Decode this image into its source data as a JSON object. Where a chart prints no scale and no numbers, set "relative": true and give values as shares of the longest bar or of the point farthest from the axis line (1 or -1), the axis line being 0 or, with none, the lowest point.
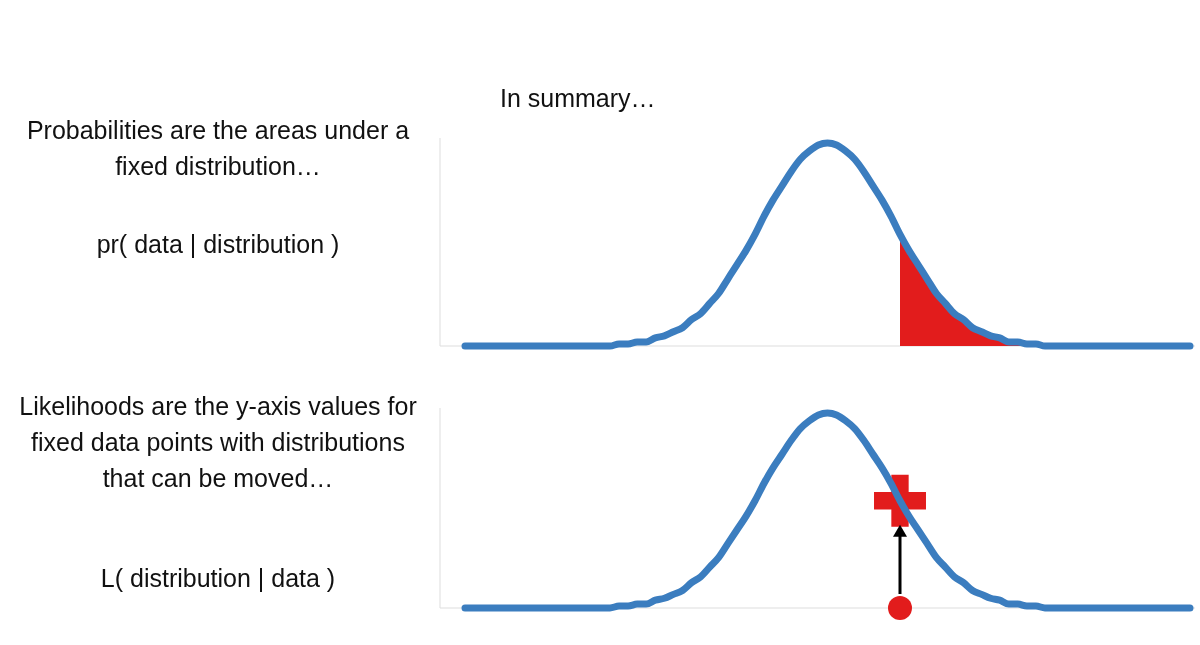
{
  "chart_data": [
    {
      "type": "line",
      "relative": true,
      "title": "In summary…",
      "annotations": [
        "Probabilities are the areas under a fixed distribution…",
        "pr( data | distribution )"
      ],
      "categories": [
        null,
        null,
        null,
        null,
        null,
        null,
        null,
        null,
        null,
        null,
        null,
        null,
        null,
        null,
        null,
        null,
        null,
        null,
        null,
        null,
        null,
        null,
        null,
        null,
        null,
        null,
        null,
        null,
        null,
        null,
        null,
        null,
        null,
        null,
        null,
        null,
        null,
        null,
        null,
        null,
        null,
        null,
        null,
        null,
        null,
        null,
        null,
        null,
        null,
        null,
        null,
        null,
        null,
        null,
        null,
        null,
        null,
        null,
        null,
        null,
        null,
        null,
        null,
        null,
        null,
        null,
        null,
        null,
        null,
        null,
        null,
        null,
        null,
        null,
        null,
        null,
        null,
        null,
        null,
        null,
        null
      ],
      "series": [
        {
          "color": "#3b7dbf",
          "values": [
            0,
            0,
            0,
            0,
            0,
            0,
            0,
            0,
            0,
            0,
            0,
            0,
            0,
            0,
            0,
            0,
            0,
            0.01,
            0.01,
            0.02,
            0.02,
            0.04,
            0.05,
            0.07,
            0.09,
            0.13,
            0.16,
            0.21,
            0.26,
            0.33,
            0.4,
            0.47,
            0.55,
            0.64,
            0.72,
            0.79,
            0.86,
            0.92,
            0.96,
            0.99,
            1,
            0.99,
            0.96,
            0.92,
            0.86,
            0.79,
            0.72,
            0.64,
            0.55,
            0.47,
            0.4,
            0.33,
            0.26,
            0.21,
            0.16,
            0.13,
            0.09,
            0.07,
            0.05,
            0.04,
            0.02,
            0.02,
            0.01,
            0.01,
            0,
            0,
            0,
            0,
            0,
            0,
            0,
            0,
            0,
            0,
            0,
            0,
            0,
            0,
            0,
            0,
            0
          ]
        },
        {
          "type": "area",
          "color": "#e21c1c",
          "values": [
            null,
            null,
            null,
            null,
            null,
            null,
            null,
            null,
            null,
            null,
            null,
            null,
            null,
            null,
            null,
            null,
            null,
            null,
            null,
            null,
            null,
            null,
            null,
            null,
            null,
            null,
            null,
            null,
            null,
            null,
            null,
            null,
            null,
            null,
            null,
            null,
            null,
            null,
            null,
            null,
            null,
            null,
            null,
            null,
            null,
            null,
            null,
            null,
            0.55,
            0.47,
            0.4,
            0.33,
            0.26,
            0.21,
            0.16,
            0.13,
            0.09,
            0.07,
            0.05,
            0.04,
            0.02,
            0.02,
            0.01,
            0.01,
            null,
            null,
            null,
            null,
            null,
            null,
            null,
            null,
            null,
            null,
            null,
            null,
            null,
            null,
            null,
            null,
            null
          ]
        }
      ]
    },
    {
      "type": "line",
      "relative": true,
      "annotations": [
        "Likelihoods are the y-axis values for fixed data points with distributions that can be moved…",
        "L( distribution | data )"
      ],
      "categories": [
        null,
        null,
        null,
        null,
        null,
        null,
        null,
        null,
        null,
        null,
        null,
        null,
        null,
        null,
        null,
        null,
        null,
        null,
        null,
        null,
        null,
        null,
        null,
        null,
        null,
        null,
        null,
        null,
        null,
        null,
        null,
        null,
        null,
        null,
        null,
        null,
        null,
        null,
        null,
        null,
        null,
        null,
        null,
        null,
        null,
        null,
        null,
        null,
        null,
        null,
        null,
        null,
        null,
        null,
        null,
        null,
        null,
        null,
        null,
        null,
        null,
        null,
        null,
        null,
        null,
        null,
        null,
        null,
        null,
        null,
        null,
        null,
        null,
        null,
        null,
        null,
        null,
        null,
        null,
        null,
        null
      ],
      "series": [
        {
          "color": "#3b7dbf",
          "values": [
            0,
            0,
            0,
            0,
            0,
            0,
            0,
            0,
            0,
            0,
            0,
            0,
            0,
            0,
            0,
            0,
            0,
            0.01,
            0.01,
            0.02,
            0.02,
            0.04,
            0.05,
            0.07,
            0.09,
            0.13,
            0.16,
            0.21,
            0.26,
            0.33,
            0.4,
            0.47,
            0.55,
            0.64,
            0.72,
            0.79,
            0.86,
            0.92,
            0.96,
            0.99,
            1,
            0.99,
            0.96,
            0.92,
            0.86,
            0.79,
            0.72,
            0.64,
            0.55,
            0.47,
            0.4,
            0.33,
            0.26,
            0.21,
            0.16,
            0.13,
            0.09,
            0.07,
            0.05,
            0.04,
            0.02,
            0.02,
            0.01,
            0.01,
            0,
            0,
            0,
            0,
            0,
            0,
            0,
            0,
            0,
            0,
            0,
            0,
            0,
            0,
            0,
            0,
            0
          ]
        },
        {
          "type": "scatter",
          "marker": "cross",
          "color": "#e21c1c",
          "values": [
            null,
            null,
            null,
            null,
            null,
            null,
            null,
            null,
            null,
            null,
            null,
            null,
            null,
            null,
            null,
            null,
            null,
            null,
            null,
            null,
            null,
            null,
            null,
            null,
            null,
            null,
            null,
            null,
            null,
            null,
            null,
            null,
            null,
            null,
            null,
            null,
            null,
            null,
            null,
            null,
            null,
            null,
            null,
            null,
            null,
            null,
            null,
            null,
            0.55,
            null,
            null,
            null,
            null,
            null,
            null,
            null,
            null,
            null,
            null,
            null,
            null,
            null,
            null,
            null,
            null,
            null,
            null,
            null,
            null,
            null,
            null,
            null,
            null,
            null,
            null,
            null,
            null,
            null,
            null,
            null,
            null
          ]
        },
        {
          "type": "scatter",
          "marker": "circle",
          "color": "#e21c1c",
          "values": [
            null,
            null,
            null,
            null,
            null,
            null,
            null,
            null,
            null,
            null,
            null,
            null,
            null,
            null,
            null,
            null,
            null,
            null,
            null,
            null,
            null,
            null,
            null,
            null,
            null,
            null,
            null,
            null,
            null,
            null,
            null,
            null,
            null,
            null,
            null,
            null,
            null,
            null,
            null,
            null,
            null,
            null,
            null,
            null,
            null,
            null,
            null,
            null,
            0,
            null,
            null,
            null,
            null,
            null,
            null,
            null,
            null,
            null,
            null,
            null,
            null,
            null,
            null,
            null,
            null,
            null,
            null,
            null,
            null,
            null,
            null,
            null,
            null,
            null,
            null,
            null,
            null,
            null,
            null,
            null,
            null
          ]
        }
      ]
    }
  ]
}
